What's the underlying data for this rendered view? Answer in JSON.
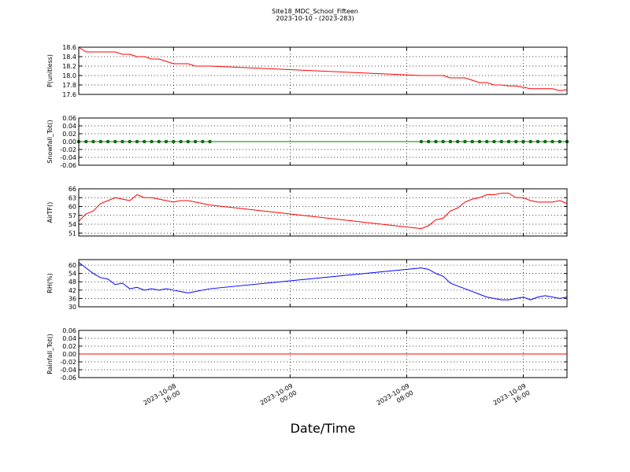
{
  "chart_data": [
    {
      "type": "line",
      "title": "Site18_MDC_School_Fifteen",
      "subtitle": "2023-10-10 - (2023-283)",
      "ylabel": "P(unitless)",
      "color": "#ff0000",
      "markers": false,
      "grid": true,
      "x": [
        "2023-10-08 09:30",
        "2023-10-08 10:00",
        "2023-10-08 10:30",
        "2023-10-08 11:00",
        "2023-10-08 11:30",
        "2023-10-08 12:00",
        "2023-10-08 12:30",
        "2023-10-08 13:00",
        "2023-10-08 13:30",
        "2023-10-08 14:00",
        "2023-10-08 14:30",
        "2023-10-08 15:00",
        "2023-10-08 15:30",
        "2023-10-08 16:00",
        "2023-10-08 16:30",
        "2023-10-08 17:00",
        "2023-10-08 17:30",
        "2023-10-08 18:00",
        "2023-10-08 18:30",
        "2023-10-09 09:00",
        "2023-10-09 09:30",
        "2023-10-09 10:00",
        "2023-10-09 10:30",
        "2023-10-09 11:00",
        "2023-10-09 11:30",
        "2023-10-09 12:00",
        "2023-10-09 12:30",
        "2023-10-09 13:00",
        "2023-10-09 13:30",
        "2023-10-09 14:00",
        "2023-10-09 14:30",
        "2023-10-09 15:00",
        "2023-10-09 15:30",
        "2023-10-09 16:00",
        "2023-10-09 16:30",
        "2023-10-09 17:00",
        "2023-10-09 17:30",
        "2023-10-09 18:00",
        "2023-10-09 18:30",
        "2023-10-09 19:00"
      ],
      "values": [
        18.6,
        18.5,
        18.5,
        18.5,
        18.5,
        18.5,
        18.45,
        18.45,
        18.4,
        18.4,
        18.35,
        18.35,
        18.3,
        18.25,
        18.25,
        18.25,
        18.2,
        18.2,
        18.2,
        18.0,
        18.0,
        18.0,
        18.0,
        17.95,
        17.95,
        17.95,
        17.9,
        17.85,
        17.85,
        17.8,
        17.8,
        17.78,
        17.78,
        17.75,
        17.72,
        17.72,
        17.72,
        17.72,
        17.68,
        17.7
      ],
      "xlim": [
        "2023-10-08 09:30",
        "2023-10-09 19:00"
      ],
      "xticks": [
        "2023-10-08 16:00",
        "2023-10-09 00:00",
        "2023-10-09 08:00",
        "2023-10-09 16:00"
      ],
      "ylim": [
        17.6,
        18.6
      ],
      "yticks": [
        17.6,
        17.8,
        {
          "value": 18,
          "label": "18.0"
        },
        18.2,
        18.4,
        18.6
      ]
    },
    {
      "type": "line",
      "ylabel": "Snowfall_Tot()",
      "color": "#008000",
      "markers": true,
      "grid": true,
      "x": [
        "2023-10-08 09:30",
        "2023-10-08 10:00",
        "2023-10-08 10:30",
        "2023-10-08 11:00",
        "2023-10-08 11:30",
        "2023-10-08 12:00",
        "2023-10-08 12:30",
        "2023-10-08 13:00",
        "2023-10-08 13:30",
        "2023-10-08 14:00",
        "2023-10-08 14:30",
        "2023-10-08 15:00",
        "2023-10-08 15:30",
        "2023-10-08 16:00",
        "2023-10-08 16:30",
        "2023-10-08 17:00",
        "2023-10-08 17:30",
        "2023-10-08 18:00",
        "2023-10-08 18:30",
        "2023-10-09 09:00",
        "2023-10-09 09:30",
        "2023-10-09 10:00",
        "2023-10-09 10:30",
        "2023-10-09 11:00",
        "2023-10-09 11:30",
        "2023-10-09 12:00",
        "2023-10-09 12:30",
        "2023-10-09 13:00",
        "2023-10-09 13:30",
        "2023-10-09 14:00",
        "2023-10-09 14:30",
        "2023-10-09 15:00",
        "2023-10-09 15:30",
        "2023-10-09 16:00",
        "2023-10-09 16:30",
        "2023-10-09 17:00",
        "2023-10-09 17:30",
        "2023-10-09 18:00",
        "2023-10-09 18:30",
        "2023-10-09 19:00"
      ],
      "values": [
        0,
        0,
        0,
        0,
        0,
        0,
        0,
        0,
        0,
        0,
        0,
        0,
        0,
        0,
        0,
        0,
        0,
        0,
        0,
        0,
        0,
        0,
        0,
        0,
        0,
        0,
        0,
        0,
        0,
        0,
        0,
        0,
        0,
        0,
        0,
        0,
        0,
        0,
        0,
        0
      ],
      "xlim": [
        "2023-10-08 09:30",
        "2023-10-09 19:00"
      ],
      "xticks": [
        "2023-10-08 16:00",
        "2023-10-09 00:00",
        "2023-10-09 08:00",
        "2023-10-09 16:00"
      ],
      "ylim": [
        -0.06,
        0.06
      ],
      "yticks": [
        -0.06,
        -0.04,
        -0.02,
        {
          "value": 0,
          "label": "0.00"
        },
        0.02,
        0.04,
        0.06
      ]
    },
    {
      "type": "line",
      "ylabel": "AirTF()",
      "color": "#ff0000",
      "markers": false,
      "grid": true,
      "x": [
        "2023-10-08 09:30",
        "2023-10-08 10:00",
        "2023-10-08 10:30",
        "2023-10-08 11:00",
        "2023-10-08 11:30",
        "2023-10-08 12:00",
        "2023-10-08 12:30",
        "2023-10-08 13:00",
        "2023-10-08 13:30",
        "2023-10-08 14:00",
        "2023-10-08 14:30",
        "2023-10-08 15:00",
        "2023-10-08 15:30",
        "2023-10-08 16:00",
        "2023-10-08 16:30",
        "2023-10-08 17:00",
        "2023-10-08 17:30",
        "2023-10-08 18:00",
        "2023-10-08 18:30",
        "2023-10-09 09:00",
        "2023-10-09 09:30",
        "2023-10-09 10:00",
        "2023-10-09 10:30",
        "2023-10-09 11:00",
        "2023-10-09 11:30",
        "2023-10-09 12:00",
        "2023-10-09 12:30",
        "2023-10-09 13:00",
        "2023-10-09 13:30",
        "2023-10-09 14:00",
        "2023-10-09 14:30",
        "2023-10-09 15:00",
        "2023-10-09 15:30",
        "2023-10-09 16:00",
        "2023-10-09 16:30",
        "2023-10-09 17:00",
        "2023-10-09 17:30",
        "2023-10-09 18:00",
        "2023-10-09 18:30",
        "2023-10-09 19:00"
      ],
      "values": [
        55,
        57.5,
        58.5,
        61,
        62,
        63,
        62.5,
        62,
        64,
        63,
        63,
        62.5,
        62,
        61.5,
        62,
        62,
        61.5,
        61,
        60.5,
        52.5,
        53.5,
        55.5,
        56,
        58.5,
        59.5,
        61.5,
        62.5,
        63,
        64,
        64,
        64.5,
        64.5,
        63,
        63,
        62,
        61.5,
        61.5,
        61.5,
        62,
        61
      ],
      "xlim": [
        "2023-10-08 09:30",
        "2023-10-09 19:00"
      ],
      "xticks": [
        "2023-10-08 16:00",
        "2023-10-09 00:00",
        "2023-10-09 08:00",
        "2023-10-09 16:00"
      ],
      "ylim": [
        50,
        66
      ],
      "yticks": [
        51,
        54,
        57,
        60,
        63,
        66
      ]
    },
    {
      "type": "line",
      "ylabel": "RH(%)",
      "color": "#0000ff",
      "markers": false,
      "grid": true,
      "x": [
        "2023-10-08 09:30",
        "2023-10-08 10:00",
        "2023-10-08 10:30",
        "2023-10-08 11:00",
        "2023-10-08 11:30",
        "2023-10-08 12:00",
        "2023-10-08 12:30",
        "2023-10-08 13:00",
        "2023-10-08 13:30",
        "2023-10-08 14:00",
        "2023-10-08 14:30",
        "2023-10-08 15:00",
        "2023-10-08 15:30",
        "2023-10-08 16:00",
        "2023-10-08 16:30",
        "2023-10-08 17:00",
        "2023-10-08 17:30",
        "2023-10-08 18:00",
        "2023-10-08 18:30",
        "2023-10-09 09:00",
        "2023-10-09 09:30",
        "2023-10-09 10:00",
        "2023-10-09 10:30",
        "2023-10-09 11:00",
        "2023-10-09 11:30",
        "2023-10-09 12:00",
        "2023-10-09 12:30",
        "2023-10-09 13:00",
        "2023-10-09 13:30",
        "2023-10-09 14:00",
        "2023-10-09 14:30",
        "2023-10-09 15:00",
        "2023-10-09 15:30",
        "2023-10-09 16:00",
        "2023-10-09 16:30",
        "2023-10-09 17:00",
        "2023-10-09 17:30",
        "2023-10-09 18:00",
        "2023-10-09 18:30",
        "2023-10-09 19:00"
      ],
      "values": [
        62,
        58,
        54,
        51,
        50,
        46,
        47,
        43,
        44,
        42,
        43,
        42,
        43,
        42,
        41,
        40,
        41,
        42,
        43,
        58,
        57,
        54,
        52,
        47,
        45,
        43,
        41,
        39,
        37,
        36,
        35,
        35,
        36,
        37,
        35,
        37,
        38,
        37,
        36,
        37
      ],
      "xlim": [
        "2023-10-08 09:30",
        "2023-10-09 19:00"
      ],
      "xticks": [
        "2023-10-08 16:00",
        "2023-10-09 00:00",
        "2023-10-09 08:00",
        "2023-10-09 16:00"
      ],
      "ylim": [
        30,
        64
      ],
      "yticks": [
        30,
        36,
        42,
        48,
        54,
        60
      ]
    },
    {
      "type": "line",
      "ylabel": "Rainfall_Tot()",
      "xlabel": "Date/Time",
      "color": "#ff0000",
      "markers": false,
      "grid": true,
      "x": [
        "2023-10-08 09:30",
        "2023-10-08 10:00",
        "2023-10-08 10:30",
        "2023-10-08 11:00",
        "2023-10-08 11:30",
        "2023-10-08 12:00",
        "2023-10-08 12:30",
        "2023-10-08 13:00",
        "2023-10-08 13:30",
        "2023-10-08 14:00",
        "2023-10-08 14:30",
        "2023-10-08 15:00",
        "2023-10-08 15:30",
        "2023-10-08 16:00",
        "2023-10-08 16:30",
        "2023-10-08 17:00",
        "2023-10-08 17:30",
        "2023-10-08 18:00",
        "2023-10-08 18:30",
        "2023-10-09 09:00",
        "2023-10-09 09:30",
        "2023-10-09 10:00",
        "2023-10-09 10:30",
        "2023-10-09 11:00",
        "2023-10-09 11:30",
        "2023-10-09 12:00",
        "2023-10-09 12:30",
        "2023-10-09 13:00",
        "2023-10-09 13:30",
        "2023-10-09 14:00",
        "2023-10-09 14:30",
        "2023-10-09 15:00",
        "2023-10-09 15:30",
        "2023-10-09 16:00",
        "2023-10-09 16:30",
        "2023-10-09 17:00",
        "2023-10-09 17:30",
        "2023-10-09 18:00",
        "2023-10-09 18:30",
        "2023-10-09 19:00"
      ],
      "values": [
        0,
        0,
        0,
        0,
        0,
        0,
        0,
        0,
        0,
        0,
        0,
        0,
        0,
        0,
        0,
        0,
        0,
        0,
        0,
        0,
        0,
        0,
        0,
        0,
        0,
        0,
        0,
        0,
        0,
        0,
        0,
        0,
        0,
        0,
        0,
        0,
        0,
        0,
        0,
        0
      ],
      "xlim": [
        "2023-10-08 09:30",
        "2023-10-09 19:00"
      ],
      "xticks": [
        "2023-10-08 16:00",
        "2023-10-09 00:00",
        "2023-10-09 08:00",
        "2023-10-09 16:00"
      ],
      "ylim": [
        -0.06,
        0.06
      ],
      "yticks": [
        -0.06,
        -0.04,
        -0.02,
        {
          "value": 0,
          "label": "0.00"
        },
        0.02,
        0.04,
        0.06
      ]
    }
  ]
}
